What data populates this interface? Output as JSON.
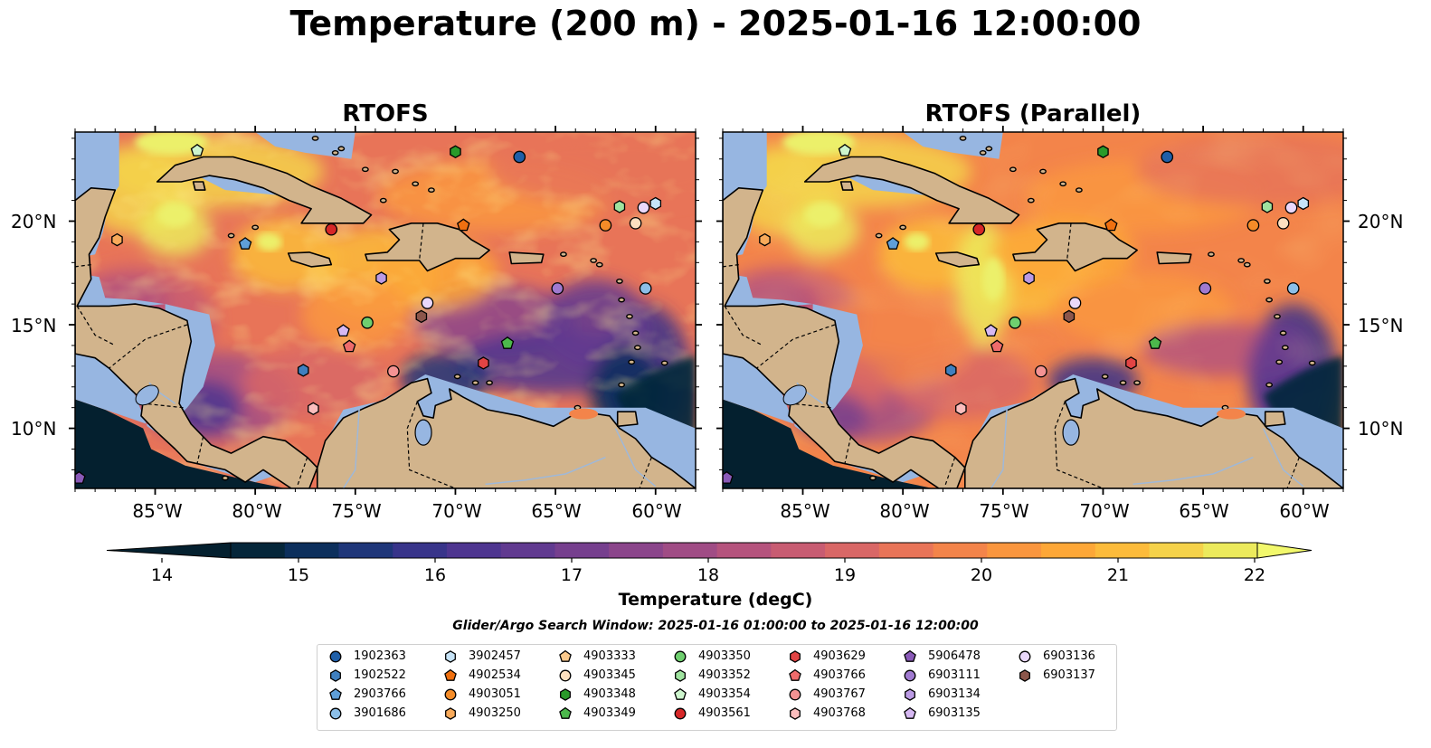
{
  "title": "Temperature (200 m) - 2025-01-16 12:00:00",
  "panels": [
    {
      "title": "RTOFS",
      "variant": "default"
    },
    {
      "title": "RTOFS (Parallel)",
      "variant": "parallel"
    }
  ],
  "axes": {
    "lon_ticks": [
      "85°W",
      "80°W",
      "75°W",
      "70°W",
      "65°W",
      "60°W"
    ],
    "lat_ticks": [
      "20°N",
      "15°N",
      "10°N"
    ]
  },
  "colorbar": {
    "label": "Temperature (degC)",
    "ticks": [
      "14",
      "15",
      "16",
      "17",
      "18",
      "19",
      "20",
      "21",
      "22"
    ],
    "colors": [
      "#05263a",
      "#0c2f5c",
      "#1f3679",
      "#38348a",
      "#4e3590",
      "#613a90",
      "#763f8e",
      "#8b458b",
      "#a04c85",
      "#b5537d",
      "#c85c72",
      "#d96766",
      "#e87458",
      "#f3844a",
      "#fa963e",
      "#fda737",
      "#fcbb3b",
      "#f5d24a",
      "#ecea5c"
    ],
    "under_color": "#04202f",
    "over_color": "#f2f86c"
  },
  "map_colors": {
    "land": "#d2b48c",
    "shelf": "#97b6e1",
    "deep_under": "#05263a"
  },
  "search_window": "Glider/Argo Search Window: 2025-01-16 01:00:00 to 2025-01-16 12:00:00",
  "floats": [
    {
      "id": "1902363",
      "marker": "circle",
      "color": "#1f5fa8"
    },
    {
      "id": "1902522",
      "marker": "hexagon",
      "color": "#3f7fbf"
    },
    {
      "id": "2903766",
      "marker": "pentagon",
      "color": "#5f9fd8"
    },
    {
      "id": "3901686",
      "marker": "circle",
      "color": "#8cbfe8"
    },
    {
      "id": "3902457",
      "marker": "hexagon",
      "color": "#c6e3f7"
    },
    {
      "id": "4902534",
      "marker": "pentagon",
      "color": "#f07010"
    },
    {
      "id": "4903051",
      "marker": "circle",
      "color": "#f58c28"
    },
    {
      "id": "4903250",
      "marker": "hexagon",
      "color": "#f9aa5a"
    },
    {
      "id": "4903333",
      "marker": "pentagon",
      "color": "#fbc98c"
    },
    {
      "id": "4903345",
      "marker": "circle",
      "color": "#fde0c0"
    },
    {
      "id": "4903348",
      "marker": "hexagon",
      "color": "#2a9a2a"
    },
    {
      "id": "4903349",
      "marker": "pentagon",
      "color": "#4cb84c"
    },
    {
      "id": "4903350",
      "marker": "circle",
      "color": "#6fcf6f"
    },
    {
      "id": "4903352",
      "marker": "hexagon",
      "color": "#9fe39f"
    },
    {
      "id": "4903354",
      "marker": "pentagon",
      "color": "#cdf5cd"
    },
    {
      "id": "4903561",
      "marker": "circle",
      "color": "#d62728"
    },
    {
      "id": "4903629",
      "marker": "hexagon",
      "color": "#e24444"
    },
    {
      "id": "4903766",
      "marker": "pentagon",
      "color": "#ee6b6b"
    },
    {
      "id": "4903767",
      "marker": "circle",
      "color": "#f49393"
    },
    {
      "id": "4903768",
      "marker": "hexagon",
      "color": "#fbbdbd"
    },
    {
      "id": "5906478",
      "marker": "pentagon",
      "color": "#8a5ab8"
    },
    {
      "id": "6903111",
      "marker": "circle",
      "color": "#a07ad0"
    },
    {
      "id": "6903134",
      "marker": "hexagon",
      "color": "#bb9ae4"
    },
    {
      "id": "6903135",
      "marker": "pentagon",
      "color": "#d6b8f2"
    },
    {
      "id": "6903136",
      "marker": "circle",
      "color": "#ead8fb"
    },
    {
      "id": "6903137",
      "marker": "hexagon",
      "color": "#8c564b"
    }
  ],
  "observations": [
    {
      "id": "4903354",
      "lon": -82.9,
      "lat": 23.4
    },
    {
      "id": "4903348",
      "lon": -70.0,
      "lat": 23.35
    },
    {
      "id": "1902363",
      "lon": -66.8,
      "lat": 23.1
    },
    {
      "id": "4903352",
      "lon": -61.8,
      "lat": 20.7
    },
    {
      "id": "6903136",
      "lon": -60.6,
      "lat": 20.65
    },
    {
      "id": "3902457",
      "lon": -60.0,
      "lat": 20.85
    },
    {
      "id": "4903345",
      "lon": -61.0,
      "lat": 19.9
    },
    {
      "id": "4903051",
      "lon": -62.5,
      "lat": 19.8
    },
    {
      "id": "4902534",
      "lon": -69.6,
      "lat": 19.8
    },
    {
      "id": "4903561",
      "lon": -76.2,
      "lat": 19.6
    },
    {
      "id": "4903250",
      "lon": -86.9,
      "lat": 19.1
    },
    {
      "id": "2903766",
      "lon": -80.5,
      "lat": 18.9
    },
    {
      "id": "6903134",
      "lon": -73.7,
      "lat": 17.25
    },
    {
      "id": "6903111",
      "lon": -64.9,
      "lat": 16.75
    },
    {
      "id": "3901686",
      "lon": -60.5,
      "lat": 16.75
    },
    {
      "id": "6903136",
      "lon": -71.4,
      "lat": 16.05
    },
    {
      "id": "6903137",
      "lon": -71.7,
      "lat": 15.4
    },
    {
      "id": "4903350",
      "lon": -74.4,
      "lat": 15.1
    },
    {
      "id": "6903135",
      "lon": -75.6,
      "lat": 14.7
    },
    {
      "id": "4903766",
      "lon": -75.3,
      "lat": 13.95
    },
    {
      "id": "4903349",
      "lon": -67.4,
      "lat": 14.1
    },
    {
      "id": "4903629",
      "lon": -68.6,
      "lat": 13.15
    },
    {
      "id": "1902522",
      "lon": -77.6,
      "lat": 12.8
    },
    {
      "id": "4903767",
      "lon": -73.1,
      "lat": 12.75
    },
    {
      "id": "4903768",
      "lon": -77.1,
      "lat": 10.95
    },
    {
      "id": "5906478",
      "lon": -88.8,
      "lat": 7.6
    }
  ]
}
